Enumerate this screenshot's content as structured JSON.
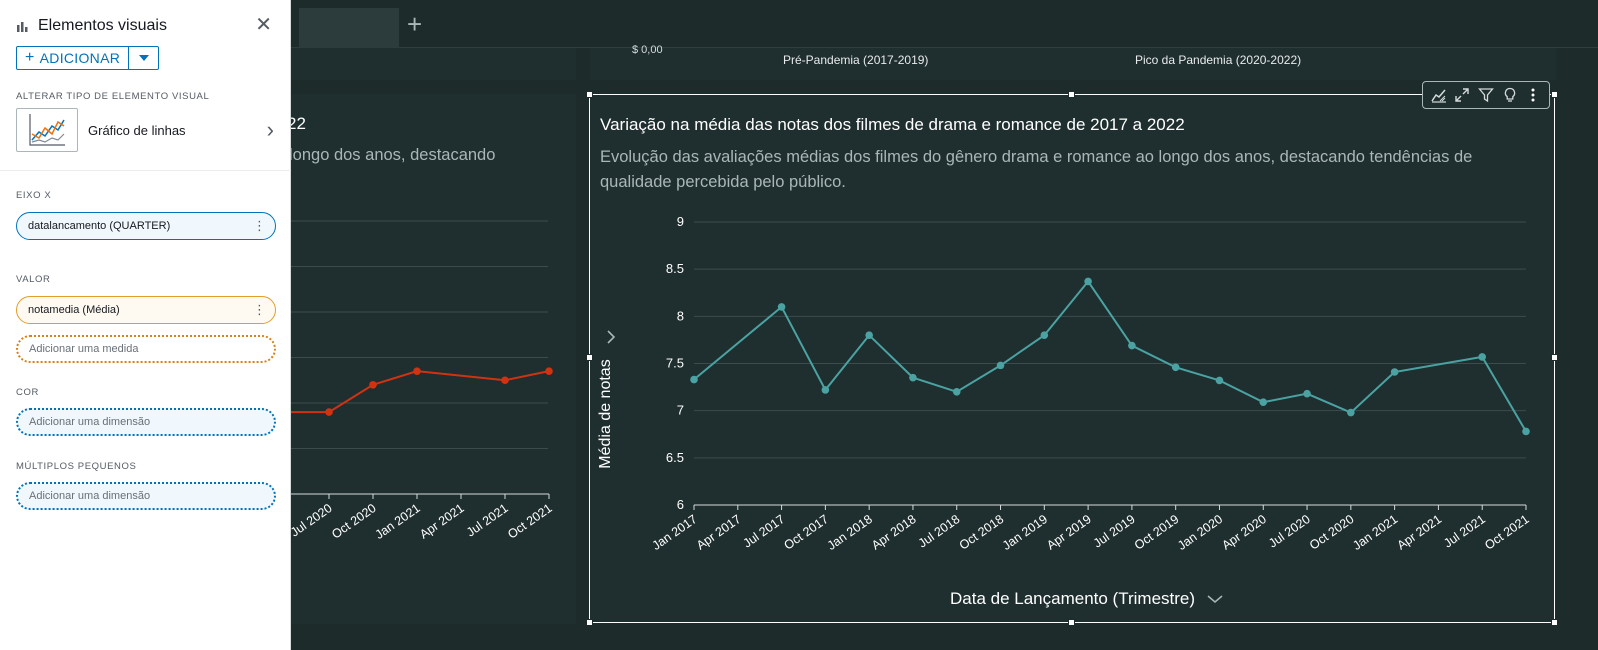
{
  "panel": {
    "title": "Elementos visuais",
    "add_label": "ADICIONAR",
    "visual_type_section": "ALTERAR TIPO DE ELEMENTO VISUAL",
    "visual_type_label": "Gráfico de linhas",
    "x_axis_section": "EIXO X",
    "x_axis_field": "datalancamento (QUARTER)",
    "value_section": "VALOR",
    "value_field": "notamedia (Média)",
    "add_measure": "Adicionar uma medida",
    "color_section": "COR",
    "color_placeholder": "Adicionar uma dimensão",
    "small_multiples_section": "MÚLTIPLOS PEQUENOS",
    "small_multiples_placeholder": "Adicionar uma dimensão"
  },
  "colors": {
    "accent": "#0073bb",
    "series_teal": "#4aa3a2",
    "series_red": "#d13212",
    "background": "#1d2b2b",
    "card": "#1f2e2e"
  },
  "strip": {
    "cut_label": "$ 0,00",
    "left_label": "Pré-Pandemia (2017-2019)",
    "right_label": "Pico da Pandemia (2020-2022)"
  },
  "left_card": {
    "title_fragment": "22",
    "subtitle_fragment": " longo dos anos, destacando"
  },
  "left_chart": {
    "type": "line",
    "categories": [
      "Jul 2020",
      "Oct 2020",
      "Jan 2021",
      "Apr 2021",
      "Jul 2021",
      "Oct 2021"
    ],
    "values": [
      6.9,
      7.2,
      7.35,
      null,
      7.25,
      7.35
    ],
    "ylim": [
      6,
      9
    ],
    "color": "#d13212"
  },
  "right_card": {
    "title": "Variação na média das notas dos filmes de drama e romance de 2017 a 2022",
    "subtitle": "Evolução das avaliações médias dos filmes do gênero drama e romance ao longo dos anos, destacando tendências de qualidade percebida pelo público.",
    "x_label": "Data de Lançamento (Trimestre)",
    "y_label": "Média de notas"
  },
  "chart_data": {
    "type": "line",
    "title": "Variação na média das notas dos filmes de drama e romance de 2017 a 2022",
    "xlabel": "Data de Lançamento (Trimestre)",
    "ylabel": "Média de notas",
    "ylim": [
      6,
      9
    ],
    "yticks": [
      6,
      6.5,
      7,
      7.5,
      8,
      8.5,
      9
    ],
    "categories": [
      "Jan 2017",
      "Apr 2017",
      "Jul 2017",
      "Oct 2017",
      "Jan 2018",
      "Apr 2018",
      "Jul 2018",
      "Oct 2018",
      "Jan 2019",
      "Apr 2019",
      "Jul 2019",
      "Oct 2019",
      "Jan 2020",
      "Apr 2020",
      "Jul 2020",
      "Oct 2020",
      "Jan 2021",
      "Apr 2021",
      "Jul 2021",
      "Oct 2021"
    ],
    "series": [
      {
        "values": [
          7.33,
          null,
          8.1,
          7.22,
          7.8,
          7.35,
          7.2,
          7.48,
          7.8,
          8.37,
          7.69,
          7.46,
          7.32,
          7.09,
          7.18,
          6.98,
          7.41,
          null,
          7.57,
          6.78
        ]
      }
    ],
    "grid": true,
    "legend": "none"
  }
}
